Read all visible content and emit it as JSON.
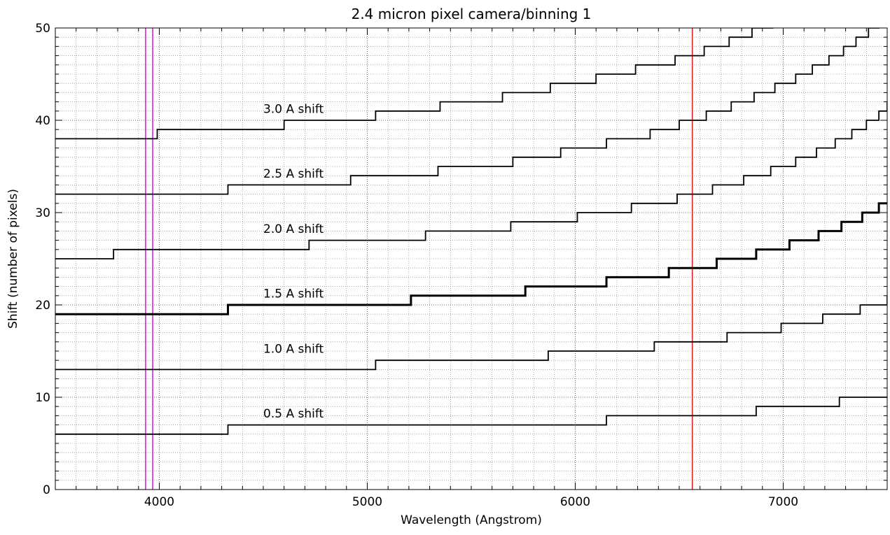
{
  "chart_data": {
    "type": "line",
    "title": "2.4 micron pixel camera/binning 1",
    "xlabel": "Wavelength (Angstrom)",
    "ylabel": "Shift (number of pixels)",
    "xlim": [
      3500,
      7500
    ],
    "ylim": [
      0,
      50
    ],
    "x_ticks": [
      4000,
      5000,
      6000,
      7000
    ],
    "x_tick_labels": [
      "4000",
      "5000",
      "6000",
      "7000"
    ],
    "y_ticks": [
      0,
      10,
      20,
      30,
      40,
      50
    ],
    "y_tick_labels": [
      "0",
      "10",
      "20",
      "30",
      "40",
      "50"
    ],
    "grid": true,
    "line_style": "steps-post",
    "series": [
      {
        "name": "0.5 A shift",
        "emphasis": false,
        "label_at": [
          4500,
          7.8
        ],
        "x": [
          3500,
          4330,
          6150,
          6870,
          7270,
          7500
        ],
        "y": [
          6,
          7,
          8,
          9,
          10,
          10
        ]
      },
      {
        "name": "1.0 A shift",
        "emphasis": false,
        "label_at": [
          4500,
          14.8
        ],
        "x": [
          3500,
          5040,
          5870,
          6380,
          6730,
          6990,
          7190,
          7370,
          7500
        ],
        "y": [
          13,
          14,
          15,
          16,
          17,
          18,
          19,
          20,
          21
        ]
      },
      {
        "name": "1.5 A shift",
        "emphasis": true,
        "label_at": [
          4500,
          20.8
        ],
        "x": [
          3500,
          4330,
          5210,
          5760,
          6150,
          6450,
          6680,
          6870,
          7030,
          7170,
          7280,
          7380,
          7460,
          7500
        ],
        "y": [
          19,
          20,
          21,
          22,
          23,
          24,
          25,
          26,
          27,
          28,
          29,
          30,
          31,
          31
        ]
      },
      {
        "name": "2.0 A shift",
        "emphasis": false,
        "label_at": [
          4500,
          27.8
        ],
        "x": [
          3500,
          3780,
          4720,
          5280,
          5690,
          6010,
          6270,
          6490,
          6660,
          6810,
          6940,
          7060,
          7160,
          7250,
          7330,
          7400,
          7460,
          7500
        ],
        "y": [
          25,
          26,
          27,
          28,
          29,
          30,
          31,
          32,
          33,
          34,
          35,
          36,
          37,
          38,
          39,
          40,
          41,
          42
        ]
      },
      {
        "name": "2.5 A shift",
        "emphasis": false,
        "label_at": [
          4500,
          33.8
        ],
        "x": [
          3500,
          4330,
          4920,
          5340,
          5700,
          5930,
          6150,
          6360,
          6500,
          6630,
          6750,
          6860,
          6960,
          7060,
          7140,
          7220,
          7290,
          7350,
          7410,
          7460,
          7500
        ],
        "y": [
          32,
          33,
          34,
          35,
          36,
          37,
          38,
          39,
          40,
          41,
          42,
          43,
          44,
          45,
          46,
          47,
          48,
          49,
          50,
          51,
          52
        ]
      },
      {
        "name": "3.0 A shift",
        "emphasis": false,
        "label_at": [
          4500,
          40.8
        ],
        "x": [
          3500,
          3990,
          4600,
          5040,
          5350,
          5650,
          5880,
          6100,
          6290,
          6480,
          6620,
          6740,
          6850,
          6950,
          7050
        ],
        "y": [
          38,
          39,
          40,
          41,
          42,
          43,
          44,
          45,
          46,
          47,
          48,
          49,
          50,
          51,
          52
        ]
      }
    ],
    "vertical_lines": [
      {
        "x": 3934,
        "color": "#e020e0"
      },
      {
        "x": 3968,
        "color": "#e020e0"
      },
      {
        "x": 6563,
        "color": "#e0201a"
      }
    ]
  }
}
